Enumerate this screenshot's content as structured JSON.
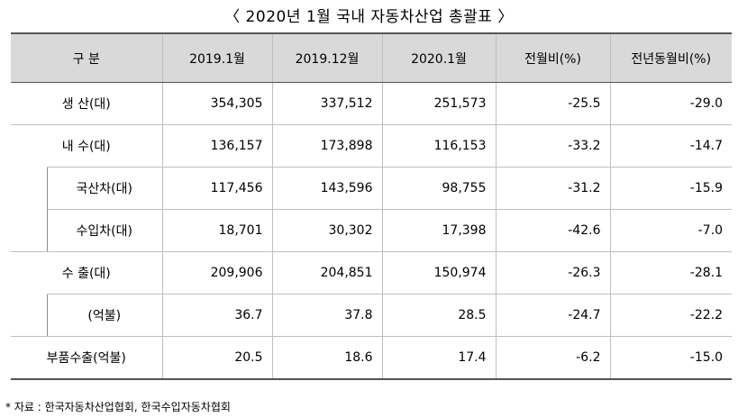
{
  "title": "〈 2020년 1월 국내 자동차산업 총괄표 〉",
  "headers": [
    "구  분",
    "2019.1월",
    "2019.12월",
    "2020.1월",
    "전월비(%)",
    "전년동월비(%)"
  ],
  "rows": [
    {
      "label": "생  산(대)",
      "values": [
        "354,305",
        "337,512",
        "251,573",
        "-25.5",
        "-29.0"
      ],
      "sub": false
    },
    {
      "label": "내  수(대)",
      "values": [
        "136,157",
        "173,898",
        "116,153",
        "-33.2",
        "-14.7"
      ],
      "sub": false
    },
    {
      "label": "국산차(대)",
      "values": [
        "117,456",
        "143,596",
        "98,755",
        "-31.2",
        "-15.9"
      ],
      "sub": true
    },
    {
      "label": "수입차(대)",
      "values": [
        "18,701",
        "30,302",
        "17,398",
        "-42.6",
        "-7.0"
      ],
      "sub": true
    },
    {
      "label": "수  출(대)",
      "values": [
        "209,906",
        "204,851",
        "150,974",
        "-26.3",
        "-28.1"
      ],
      "sub": false
    },
    {
      "label": "(억불)",
      "values": [
        "36.7",
        "37.8",
        "28.5",
        "-24.7",
        "-22.2"
      ],
      "sub": true
    },
    {
      "label": "부품수출(억불)",
      "values": [
        "20.5",
        "18.6",
        "17.4",
        "-6.2",
        "-15.0"
      ],
      "sub": false
    }
  ],
  "footnote": "* 자료 : 한국자동차산업협회, 한국수입자동차협회"
}
